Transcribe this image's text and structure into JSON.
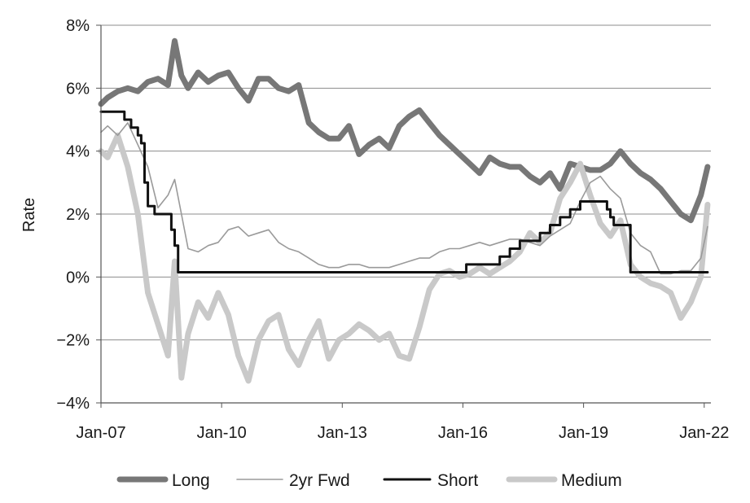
{
  "chart_data": {
    "type": "line",
    "title": "",
    "xlabel": "",
    "ylabel": "Rate",
    "x_ticks": [
      "Jan-07",
      "Jan-10",
      "Jan-13",
      "Jan-16",
      "Jan-19",
      "Jan-22"
    ],
    "y_ticks": [
      "8%",
      "6%",
      "4%",
      "2%",
      "0%",
      "−2%",
      "−4%"
    ],
    "xlim": [
      "2007-01",
      "2022-03"
    ],
    "ylim": [
      -4,
      8
    ],
    "grid": "horizontal",
    "legend_position": "bottom",
    "series": [
      {
        "name": "Long",
        "color": "#777777",
        "x": [
          "2007-01",
          "2007-03",
          "2007-06",
          "2007-09",
          "2007-12",
          "2008-03",
          "2008-06",
          "2008-09",
          "2008-11",
          "2009-01",
          "2009-03",
          "2009-06",
          "2009-09",
          "2009-12",
          "2010-03",
          "2010-06",
          "2010-09",
          "2010-12",
          "2011-03",
          "2011-06",
          "2011-09",
          "2011-12",
          "2012-03",
          "2012-06",
          "2012-09",
          "2012-12",
          "2013-03",
          "2013-06",
          "2013-09",
          "2013-12",
          "2014-03",
          "2014-06",
          "2014-09",
          "2014-12",
          "2015-03",
          "2015-06",
          "2015-09",
          "2015-12",
          "2016-03",
          "2016-06",
          "2016-09",
          "2016-12",
          "2017-03",
          "2017-06",
          "2017-09",
          "2017-12",
          "2018-03",
          "2018-06",
          "2018-09",
          "2018-12",
          "2019-03",
          "2019-06",
          "2019-09",
          "2019-12",
          "2020-03",
          "2020-06",
          "2020-09",
          "2020-12",
          "2021-03",
          "2021-06",
          "2021-09",
          "2021-12",
          "2022-02"
        ],
        "values": [
          5.5,
          5.7,
          5.9,
          6.0,
          5.9,
          6.2,
          6.3,
          6.1,
          7.5,
          6.4,
          6.0,
          6.5,
          6.2,
          6.4,
          6.5,
          6.0,
          5.6,
          6.3,
          6.3,
          6.0,
          5.9,
          6.1,
          4.9,
          4.6,
          4.4,
          4.4,
          4.8,
          3.9,
          4.2,
          4.4,
          4.1,
          4.8,
          5.1,
          5.3,
          4.9,
          4.5,
          4.2,
          3.9,
          3.6,
          3.3,
          3.8,
          3.6,
          3.5,
          3.5,
          3.2,
          3.0,
          3.3,
          2.8,
          3.6,
          3.5,
          3.4,
          3.4,
          3.6,
          4.0,
          3.6,
          3.3,
          3.1,
          2.8,
          2.4,
          2.0,
          1.8,
          2.6,
          3.5
        ]
      },
      {
        "name": "2yr Fwd",
        "color": "#9a9a9a",
        "x": [
          "2007-01",
          "2007-03",
          "2007-06",
          "2007-09",
          "2007-12",
          "2008-03",
          "2008-06",
          "2008-09",
          "2008-11",
          "2009-01",
          "2009-03",
          "2009-06",
          "2009-09",
          "2009-12",
          "2010-03",
          "2010-06",
          "2010-09",
          "2010-12",
          "2011-03",
          "2011-06",
          "2011-09",
          "2011-12",
          "2012-03",
          "2012-06",
          "2012-09",
          "2012-12",
          "2013-03",
          "2013-06",
          "2013-09",
          "2013-12",
          "2014-03",
          "2014-06",
          "2014-09",
          "2014-12",
          "2015-03",
          "2015-06",
          "2015-09",
          "2015-12",
          "2016-03",
          "2016-06",
          "2016-09",
          "2016-12",
          "2017-03",
          "2017-06",
          "2017-09",
          "2017-12",
          "2018-03",
          "2018-06",
          "2018-09",
          "2018-12",
          "2019-03",
          "2019-06",
          "2019-09",
          "2019-12",
          "2020-03",
          "2020-06",
          "2020-09",
          "2020-12",
          "2021-03",
          "2021-06",
          "2021-09",
          "2021-12",
          "2022-02"
        ],
        "values": [
          4.6,
          4.8,
          4.5,
          4.9,
          4.2,
          3.5,
          2.2,
          2.6,
          3.1,
          2.0,
          0.9,
          0.8,
          1.0,
          1.1,
          1.5,
          1.6,
          1.3,
          1.4,
          1.5,
          1.1,
          0.9,
          0.8,
          0.6,
          0.4,
          0.3,
          0.3,
          0.4,
          0.4,
          0.3,
          0.3,
          0.3,
          0.4,
          0.5,
          0.6,
          0.6,
          0.8,
          0.9,
          0.9,
          1.0,
          1.1,
          1.0,
          1.1,
          1.2,
          1.2,
          1.1,
          1.0,
          1.3,
          1.5,
          1.7,
          2.4,
          3.0,
          3.2,
          2.8,
          2.5,
          1.4,
          1.0,
          0.8,
          0.1,
          0.1,
          0.2,
          0.2,
          0.6,
          1.6
        ]
      },
      {
        "name": "Short",
        "color": "#111111",
        "step": true,
        "x": [
          "2007-01",
          "2007-07",
          "2007-08",
          "2007-10",
          "2007-12",
          "2008-01",
          "2008-02",
          "2008-03",
          "2008-05",
          "2008-10",
          "2008-11",
          "2008-12",
          "2016-02",
          "2016-12",
          "2017-03",
          "2017-06",
          "2017-12",
          "2018-03",
          "2018-06",
          "2018-09",
          "2018-12",
          "2019-08",
          "2019-09",
          "2019-10",
          "2020-03",
          "2022-02"
        ],
        "values": [
          5.25,
          5.25,
          5.0,
          4.75,
          4.5,
          4.25,
          3.0,
          2.25,
          2.0,
          1.5,
          1.0,
          0.15,
          0.4,
          0.65,
          0.9,
          1.15,
          1.4,
          1.65,
          1.9,
          2.15,
          2.4,
          2.15,
          1.9,
          1.65,
          0.15,
          0.15
        ]
      },
      {
        "name": "Medium",
        "color": "#c9c9c9",
        "x": [
          "2007-01",
          "2007-03",
          "2007-06",
          "2007-09",
          "2007-12",
          "2008-03",
          "2008-06",
          "2008-09",
          "2008-11",
          "2009-01",
          "2009-03",
          "2009-06",
          "2009-09",
          "2009-12",
          "2010-03",
          "2010-06",
          "2010-09",
          "2010-12",
          "2011-03",
          "2011-06",
          "2011-09",
          "2011-12",
          "2012-03",
          "2012-06",
          "2012-09",
          "2012-12",
          "2013-03",
          "2013-06",
          "2013-09",
          "2013-12",
          "2014-03",
          "2014-06",
          "2014-09",
          "2014-12",
          "2015-03",
          "2015-06",
          "2015-09",
          "2015-12",
          "2016-03",
          "2016-06",
          "2016-09",
          "2016-12",
          "2017-03",
          "2017-06",
          "2017-09",
          "2017-12",
          "2018-03",
          "2018-06",
          "2018-09",
          "2018-12",
          "2019-03",
          "2019-06",
          "2019-09",
          "2019-12",
          "2020-03",
          "2020-06",
          "2020-09",
          "2020-12",
          "2021-03",
          "2021-06",
          "2021-09",
          "2021-12",
          "2022-02"
        ],
        "values": [
          4.0,
          3.8,
          4.5,
          3.5,
          2.0,
          -0.5,
          -1.5,
          -2.5,
          0.5,
          -3.2,
          -1.8,
          -0.8,
          -1.3,
          -0.5,
          -1.2,
          -2.5,
          -3.3,
          -2.0,
          -1.4,
          -1.2,
          -2.3,
          -2.8,
          -2.0,
          -1.4,
          -2.6,
          -2.0,
          -1.8,
          -1.5,
          -1.7,
          -2.0,
          -1.8,
          -2.5,
          -2.6,
          -1.6,
          -0.4,
          0.1,
          0.2,
          0.0,
          0.1,
          0.3,
          0.1,
          0.3,
          0.5,
          0.8,
          1.4,
          1.1,
          1.4,
          2.5,
          3.0,
          3.6,
          2.6,
          1.7,
          1.3,
          1.8,
          0.4,
          0.0,
          -0.2,
          -0.3,
          -0.5,
          -1.3,
          -0.8,
          0.0,
          2.3
        ]
      }
    ]
  }
}
